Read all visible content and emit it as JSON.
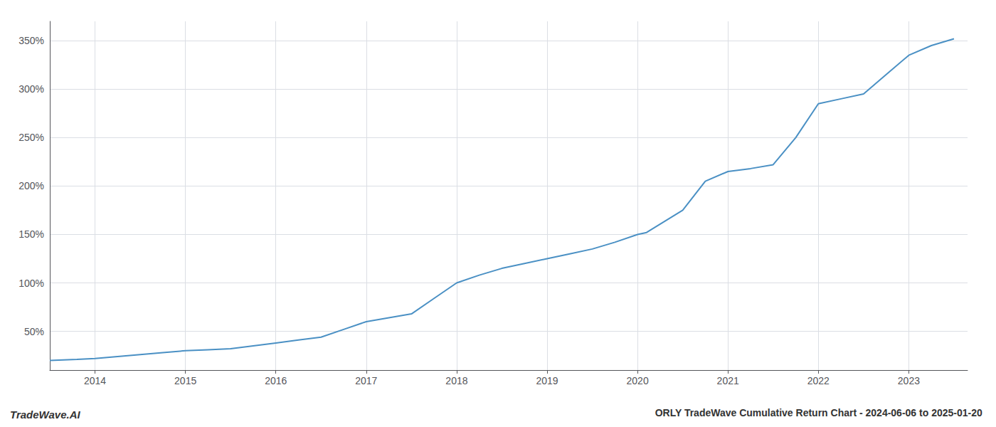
{
  "chart_data": {
    "type": "line",
    "title": "ORLY TradeWave Cumulative Return Chart - 2024-06-06 to 2025-01-20",
    "annotations": [
      "TradeWave.AI"
    ],
    "x": [
      2013.5,
      2013.8,
      2014.0,
      2014.25,
      2014.5,
      2014.75,
      2015.0,
      2015.25,
      2015.5,
      2015.75,
      2016.0,
      2016.25,
      2016.5,
      2016.75,
      2017.0,
      2017.25,
      2017.5,
      2017.75,
      2018.0,
      2018.25,
      2018.5,
      2018.75,
      2019.0,
      2019.25,
      2019.5,
      2019.75,
      2020.0,
      2020.1,
      2020.5,
      2020.75,
      2021.0,
      2021.25,
      2021.5,
      2021.75,
      2022.0,
      2022.25,
      2022.5,
      2022.75,
      2023.0,
      2023.25,
      2023.5
    ],
    "values": [
      20,
      21,
      22,
      24,
      26,
      28,
      30,
      31,
      32,
      35,
      38,
      41,
      44,
      52,
      60,
      64,
      68,
      84,
      100,
      108,
      115,
      120,
      125,
      130,
      135,
      142,
      150,
      152,
      175,
      205,
      215,
      218,
      222,
      250,
      285,
      290,
      295,
      315,
      335,
      345,
      352
    ],
    "color": "#4a90c4",
    "xlim": [
      2013.5,
      2023.65
    ],
    "xticks": [
      2014,
      2015,
      2016,
      2017,
      2018,
      2019,
      2020,
      2021,
      2022,
      2023
    ],
    "ylim": [
      10,
      370
    ],
    "yticks": [
      {
        "value": 50,
        "label": "50%"
      },
      {
        "value": 100,
        "label": "100%"
      },
      {
        "value": 150,
        "label": "150%"
      },
      {
        "value": 200,
        "label": "200%"
      },
      {
        "value": 250,
        "label": "250%"
      },
      {
        "value": 300,
        "label": "300%"
      },
      {
        "value": 350,
        "label": "350%"
      }
    ],
    "grid": true
  }
}
